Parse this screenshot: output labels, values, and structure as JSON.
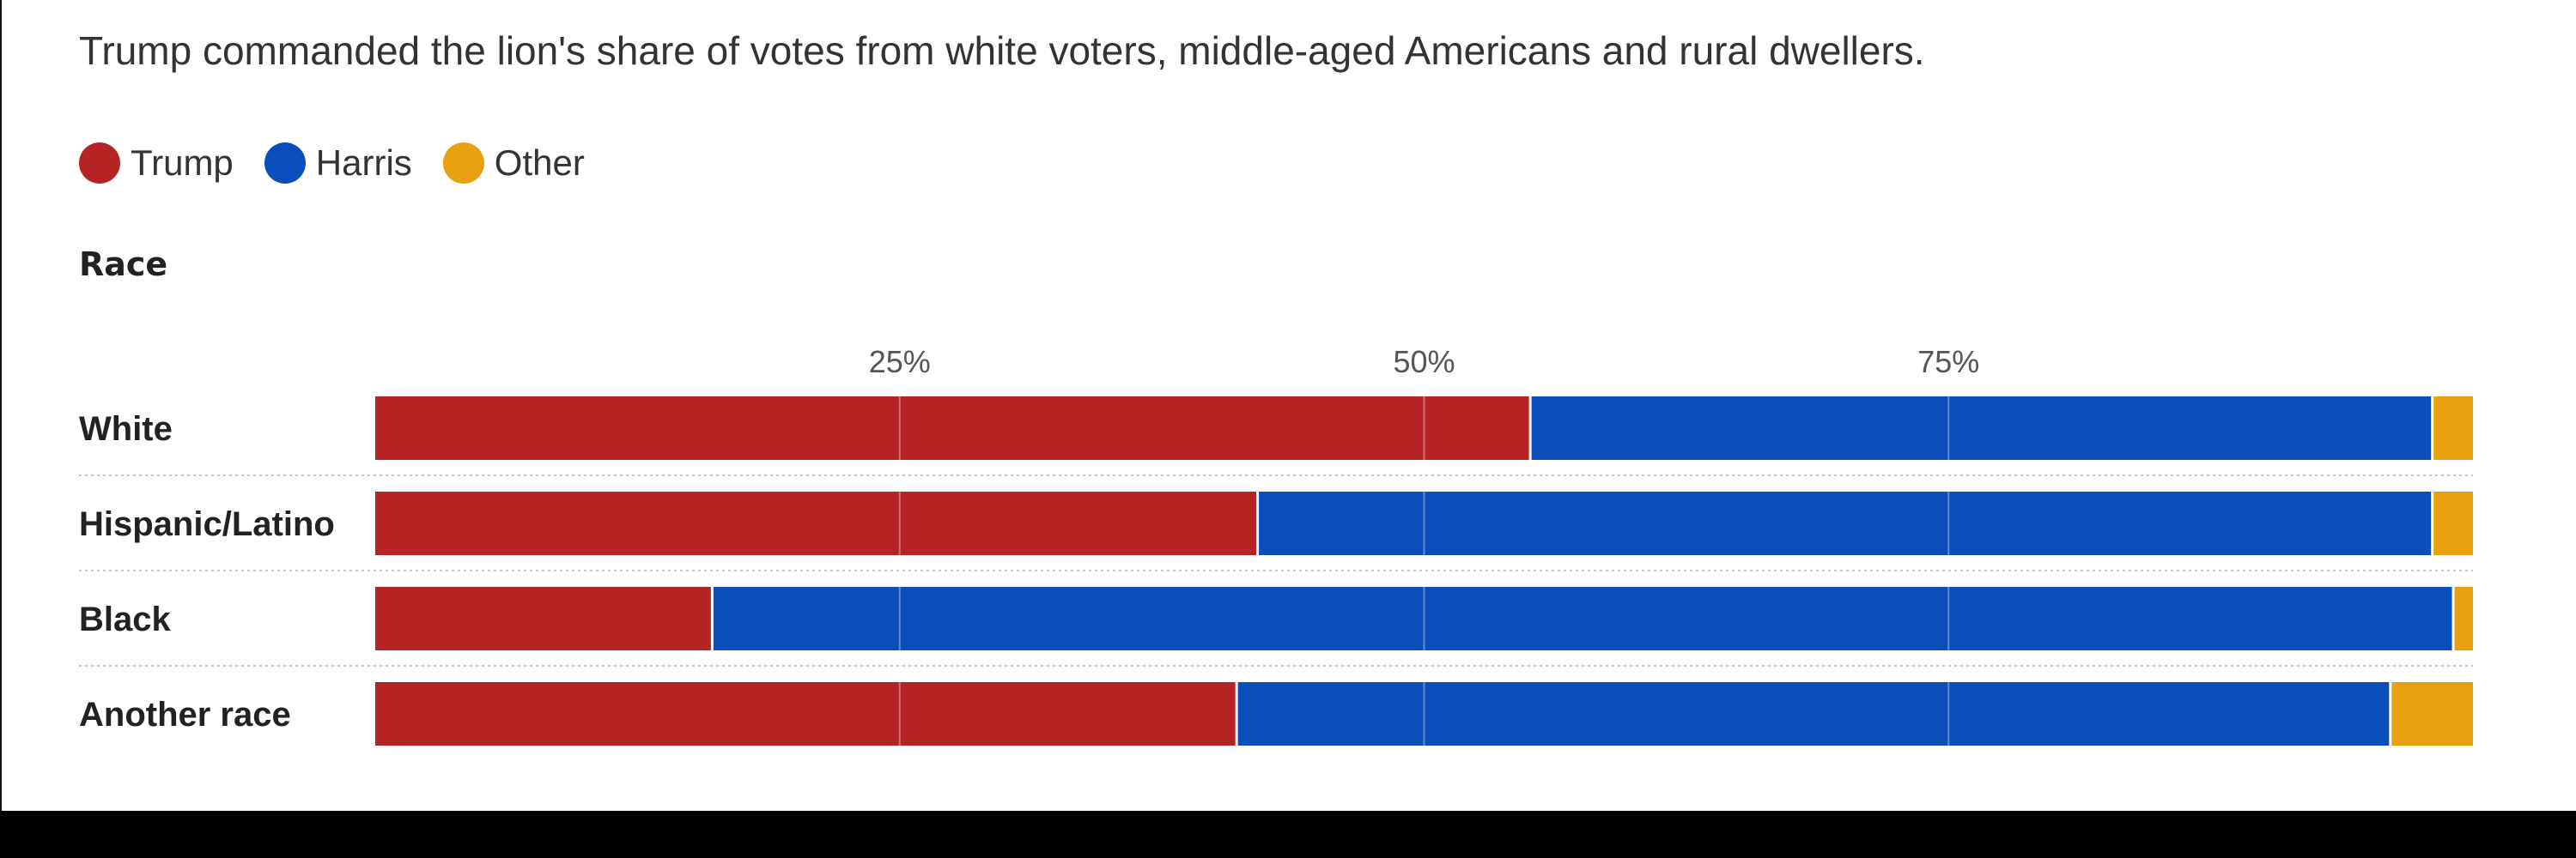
{
  "subtitle": "Trump commanded the lion's share of votes from white voters, middle-aged Americans and rural dwellers.",
  "legend": [
    {
      "label": "Trump",
      "color": "#B52325"
    },
    {
      "label": "Harris",
      "color": "#0A4EBC"
    },
    {
      "label": "Other",
      "color": "#E9A00E"
    }
  ],
  "section_title": "Race",
  "chart_data": {
    "type": "bar",
    "orientation": "horizontal",
    "stacked": true,
    "title": "Race",
    "xlabel": "",
    "ylabel": "",
    "xlim": [
      0,
      100
    ],
    "x_ticks": [
      25,
      50,
      75
    ],
    "x_tick_labels": [
      "25%",
      "50%",
      "75%"
    ],
    "grid": true,
    "categories": [
      "White",
      "Hispanic/Latino",
      "Black",
      "Another race"
    ],
    "series": [
      {
        "name": "Trump",
        "color": "#B52325",
        "values": [
          55,
          42,
          16,
          41
        ]
      },
      {
        "name": "Harris",
        "color": "#0A4EBC",
        "values": [
          43,
          56,
          83,
          55
        ]
      },
      {
        "name": "Other",
        "color": "#E9A00E",
        "values": [
          2,
          2,
          1,
          4
        ]
      }
    ]
  }
}
